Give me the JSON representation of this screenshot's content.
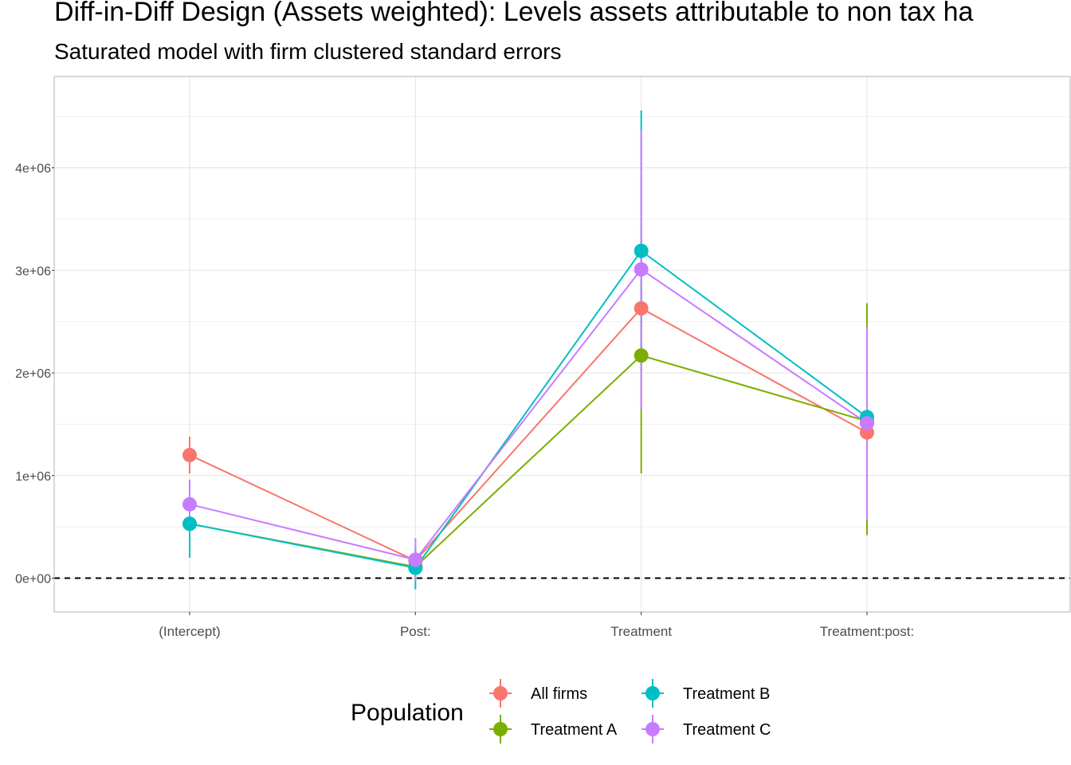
{
  "chart_data": {
    "type": "line",
    "title": "Diff-in-Diff Design (Assets weighted): Levels assets attributable to non tax ha",
    "subtitle": "Saturated model with firm clustered standard errors",
    "categories": [
      "(Intercept)",
      "Post:",
      "Treatment",
      "Treatment:post:"
    ],
    "y_tick_values": [
      0,
      1000000,
      2000000,
      3000000,
      4000000
    ],
    "y_tick_labels": [
      "0e+00",
      "1e+06",
      "2e+06",
      "3e+06",
      "4e+06"
    ],
    "ylim": [
      -330000,
      4890000
    ],
    "reference_line": {
      "y": 0,
      "style": "dashed"
    },
    "grid": true,
    "legend": {
      "title": "Population",
      "position": "bottom"
    },
    "series": [
      {
        "name": "All firms",
        "color": "#F8766D",
        "values": [
          1200000,
          170000,
          2630000,
          1420000
        ],
        "lower": [
          1020000,
          70000,
          2420000,
          1240000
        ],
        "upper": [
          1380000,
          270000,
          2840000,
          1600000
        ]
      },
      {
        "name": "Treatment A",
        "color": "#7CAE00",
        "values": [
          530000,
          110000,
          2170000,
          1530000
        ],
        "lower": [
          330000,
          -20000,
          1020000,
          420000
        ],
        "upper": [
          730000,
          240000,
          3320000,
          2680000
        ]
      },
      {
        "name": "Treatment B",
        "color": "#00BFC4",
        "values": [
          530000,
          100000,
          3190000,
          1570000
        ],
        "lower": [
          200000,
          -110000,
          2020000,
          720000
        ],
        "upper": [
          860000,
          310000,
          4560000,
          2420000
        ]
      },
      {
        "name": "Treatment C",
        "color": "#C77CFF",
        "values": [
          720000,
          180000,
          3010000,
          1510000
        ],
        "lower": [
          480000,
          -30000,
          1650000,
          570000
        ],
        "upper": [
          960000,
          390000,
          4370000,
          2450000
        ]
      }
    ]
  }
}
